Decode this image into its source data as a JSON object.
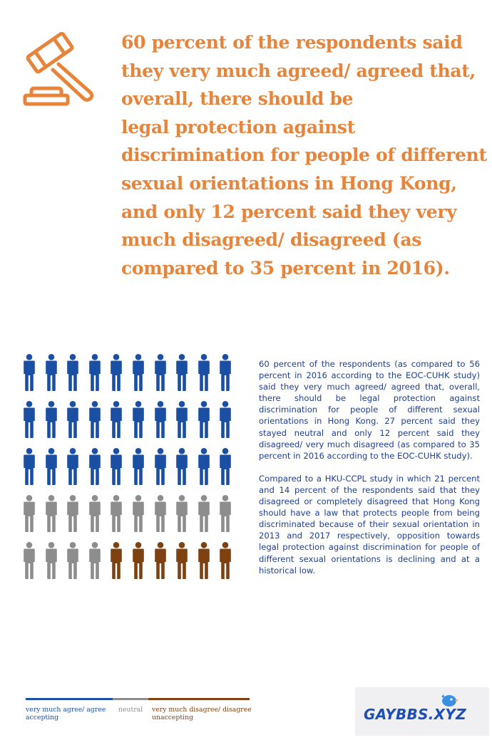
{
  "colors": {
    "accent": "#e8833a",
    "agree": "#1a4fa3",
    "neutral": "#8d8d8d",
    "disagree": "#7e4212",
    "text_blue": "#1e3f8f"
  },
  "headline_lines": [
    "60 percent of the respondents said",
    "they very much agreed/ agreed that,",
    "overall, there should be",
    "legal protection against",
    "discrimination for people of different",
    "sexual orientations in Hong Kong,",
    "and only 12 percent said they very",
    "much disagreed/ disagreed (as",
    "compared to 35 percent in 2016)."
  ],
  "gavel_icon": "gavel-icon",
  "icon_grid": {
    "agree": 30,
    "neutral": 14,
    "disagree": 6
  },
  "paragraphs": [
    "60 percent of the respondents (as compared to 56 percent in 2016 according to the EOC-CUHK study) said they very much agreed/ agreed that, overall, there should be legal protection against discrimination for people of different sexual orientations in Hong Kong. 27 percent said they stayed neutral and only 12 percent said they disagreed/ very much disagreed (as compared to 35 percent in 2016 according to the EOC-CUHK study).",
    "Compared to a HKU-CCPL study in which 21 percent and 14 percent of the respondents said that they disagreed or completely disagreed that Hong Kong should have a law that protects people from being discriminated because of their sexual orientation in 2013 and 2017 respectively, opposition towards legal protection against discrimination for people of different sexual orientations is declining and at a historical low."
  ],
  "legend": [
    {
      "key": "agree",
      "line1": "very much agree/ agree",
      "line2": "accepting"
    },
    {
      "key": "neutral",
      "line1": "neutral",
      "line2": ""
    },
    {
      "key": "disagree",
      "line1": "very much disagree/ disagree",
      "line2": "unaccepting"
    }
  ],
  "watermark": {
    "text": "GAYBBS.XYZ",
    "icon": "bird-icon"
  }
}
